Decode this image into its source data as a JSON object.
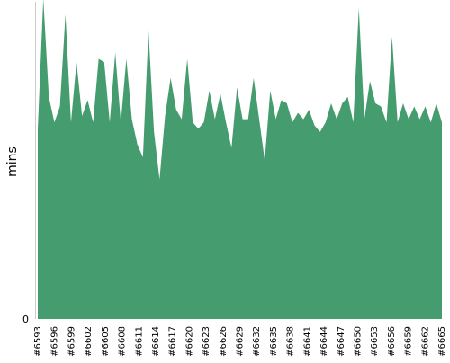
{
  "chart_data": {
    "type": "area",
    "title": "",
    "xlabel": "",
    "ylabel": "mins",
    "y_tick_labels": [
      "0"
    ],
    "x_tick_labels": [
      "#6593",
      "#6596",
      "#6599",
      "#6602",
      "#6605",
      "#6608",
      "#6611",
      "#6614",
      "#6617",
      "#6620",
      "#6623",
      "#6626",
      "#6629",
      "#6632",
      "#6635",
      "#6638",
      "#6641",
      "#6644",
      "#6647",
      "#6650",
      "#6653",
      "#6656",
      "#6659",
      "#6662",
      "#6665"
    ],
    "x_start": 6593,
    "x_end": 6665,
    "ylim": [
      0,
      100
    ],
    "color": "#459c6e",
    "grid": false,
    "legend": "none",
    "values": [
      60,
      101,
      70,
      62,
      67,
      96,
      62,
      81,
      64,
      69,
      62,
      82,
      81,
      62,
      84,
      62,
      82,
      63,
      55,
      51,
      91,
      59,
      44,
      64,
      76,
      66,
      63,
      82,
      62,
      60,
      62,
      72,
      63,
      71,
      62,
      54,
      73,
      63,
      63,
      76,
      63,
      50,
      72,
      63,
      69,
      68,
      62,
      65,
      63,
      66,
      61,
      59,
      62,
      68,
      63,
      68,
      70,
      62,
      98,
      63,
      75,
      68,
      67,
      62,
      89,
      62,
      68,
      63,
      67,
      63,
      67,
      62,
      68,
      62
    ]
  }
}
